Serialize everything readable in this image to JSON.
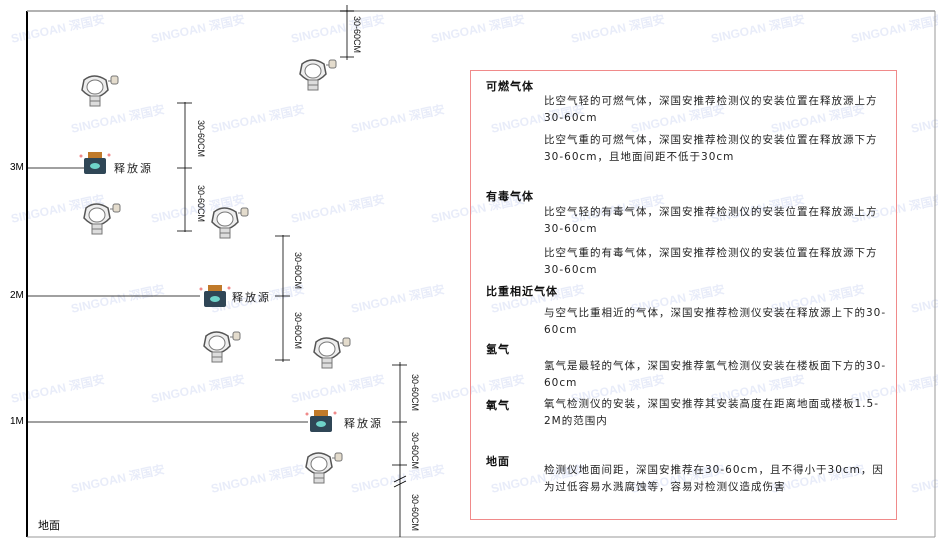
{
  "levels": {
    "l3": "3M",
    "l2": "2M",
    "l1": "1M",
    "ground": "地面"
  },
  "source_label": "释放源",
  "dimension_label": "30-60CM",
  "watermark": "SINGOAN 深国安",
  "colors": {
    "box_border": "#f08a8a",
    "source_body": "#2f4656",
    "source_cap": "#c07a2a"
  },
  "info": {
    "combustible": {
      "title": "可燃气体",
      "lighter": "比空气轻的可燃气体，深国安推荐检测仪的安装位置在释放源上方30-60cm",
      "heavier": "比空气重的可燃气体，深国安推荐检测仪的安装位置在释放源下方30-60cm，且地面间距不低于30cm"
    },
    "toxic": {
      "title": "有毒气体",
      "lighter": "比空气轻的有毒气体，深国安推荐检测仪的安装位置在释放源上方30-60cm",
      "heavier": "比空气重的有毒气体，深国安推荐检测仪的安装位置在释放源下方30-60cm"
    },
    "similar": {
      "title": "比重相近气体",
      "text": "与空气比重相近的气体，深国安推荐检测仪安装在释放源上下的30-60cm"
    },
    "hydrogen": {
      "title": "氢气",
      "text": "氢气是最轻的气体，深国安推荐氢气检测仪安装在楼板面下方的30-60cm"
    },
    "oxygen": {
      "title": "氧气",
      "text": "氧气检测仪的安装，深国安推荐其安装高度在距离地面或楼板1.5-2M的范围内"
    },
    "ground": {
      "title": "地面",
      "text": "检测仪地面间距，深国安推荐在30-60cm，且不得小于30cm，因为过低容易水溅腐蚀等，容易对检测仪造成伤害"
    }
  }
}
